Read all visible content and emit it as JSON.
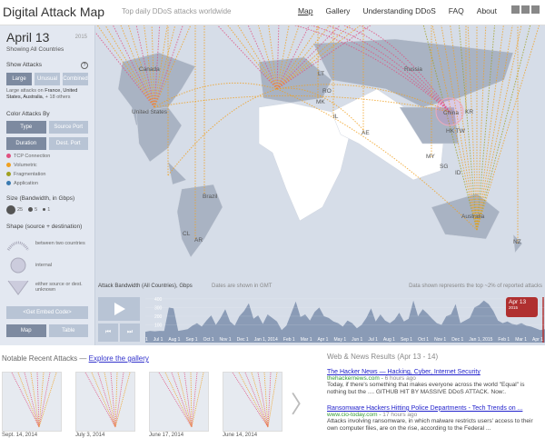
{
  "header": {
    "title": "Digital Attack Map",
    "subtitle": "Top daily DDoS attacks worldwide",
    "nav": [
      "Map",
      "Gallery",
      "Understanding DDoS",
      "FAQ",
      "About"
    ],
    "social_icons": [
      "google-plus-icon",
      "twitter-icon",
      "facebook-icon"
    ]
  },
  "sidebar": {
    "date": "April 13",
    "year": "2015",
    "showing": "Showing All Countries",
    "show_attacks": {
      "label": "Show Attacks",
      "buttons": [
        "Large",
        "Unusual",
        "Combined"
      ],
      "selected": "Large",
      "note_prefix": "Large attacks on ",
      "note_countries": "France, United States, Australia",
      "note_suffix": ", + 18 others"
    },
    "color_by": {
      "label": "Color Attacks By",
      "buttons": [
        "Type",
        "Source Port",
        "Duration",
        "Dest. Port"
      ],
      "selected": [
        "Type",
        "Duration"
      ]
    },
    "legend": [
      {
        "label": "TCP Connection",
        "color": "#e05080"
      },
      {
        "label": "Volumetric",
        "color": "#f0a020"
      },
      {
        "label": "Fragmentation",
        "color": "#a0a020"
      },
      {
        "label": "Application",
        "color": "#3a7ab0"
      }
    ],
    "size": {
      "label": "Size (Bandwidth, in Gbps)",
      "values": [
        "25",
        "5",
        "1"
      ]
    },
    "shape": {
      "label": "Shape (source + destination)",
      "items": [
        "between two countries",
        "internal",
        "either source or dest. unknown"
      ]
    },
    "embed": "<Get Embed Code>",
    "views": [
      "Map",
      "Table"
    ],
    "selected_view": "Map"
  },
  "map": {
    "labels": [
      "Canada",
      "United States",
      "Brazil",
      "CL",
      "AR",
      "Russia",
      "China",
      "KR",
      "HK TW",
      "AE",
      "IL",
      "MK",
      "RO",
      "LT",
      "MY",
      "SG",
      "ID",
      "Australia",
      "NZ"
    ]
  },
  "timeline": {
    "title": "Attack Bandwidth (All Countries), Gbps",
    "tz_note": "Dates are shown in GMT",
    "data_note": "Data shown represents the top ~2% of reported attacks",
    "y_ticks": [
      "100",
      "200",
      "300",
      "400"
    ],
    "x_ticks": [
      "1",
      "Jul 1",
      "Aug 1",
      "Sep 1",
      "Oct 1",
      "Nov 1",
      "Dec 1",
      "Jan 1, 2014",
      "Feb 1",
      "Mar 1",
      "Apr 1",
      "May 1",
      "Jun 1",
      "Jul 1",
      "Aug 1",
      "Sep 1",
      "Oct 1",
      "Nov 1",
      "Dec 1",
      "Jan 1, 2015",
      "Feb 1",
      "Mar 1",
      "Apr 1"
    ],
    "values": [
      20,
      30,
      25,
      30,
      28,
      300,
      290,
      30,
      40,
      50,
      90,
      120,
      80,
      150,
      210,
      100,
      180,
      280,
      140,
      90,
      200,
      260,
      350,
      170,
      210,
      110,
      220,
      180,
      140,
      40,
      90,
      230,
      370,
      190,
      220,
      150,
      250,
      300,
      200,
      180,
      140,
      120,
      80,
      150,
      120,
      60,
      100,
      180,
      290,
      140,
      220,
      150,
      120,
      160,
      240,
      140,
      170,
      380,
      200,
      280,
      230,
      170,
      120,
      100,
      200,
      220,
      340,
      120,
      150,
      180,
      300,
      330,
      380,
      340,
      260,
      150,
      120,
      140,
      110,
      100,
      120,
      90,
      80,
      60,
      40,
      50
    ],
    "marker": {
      "date": "Apr 13",
      "year": "2015"
    }
  },
  "gallery": {
    "title": "Notable Recent Attacks —",
    "link": "Explore the gallery",
    "items": [
      "Sept. 14, 2014",
      "July 3, 2014",
      "June 17, 2014",
      "June 14, 2014"
    ]
  },
  "news": {
    "title": "Web & News Results (Apr 13 - 14)",
    "results": [
      {
        "title": "The Hacker News — Hacking, Cyber, Internet Security",
        "url": "thehackernews.com",
        "age": "6 hours ago",
        "desc": "Today, if there's something that makes everyone across the world \"Equal\" is nothing but the .... GITHUB HIT BY MASSIVE DDoS ATTACK. Now:."
      },
      {
        "title": "Ransomware Hackers Hitting Police Departments - Tech Trends on ...",
        "url": "www.cio-today.com",
        "age": "17 hours ago",
        "desc": "Attacks involving ransomware, in which malware restricts users' access to their own computer files, are on the rise, according to the Federal ..."
      }
    ]
  }
}
